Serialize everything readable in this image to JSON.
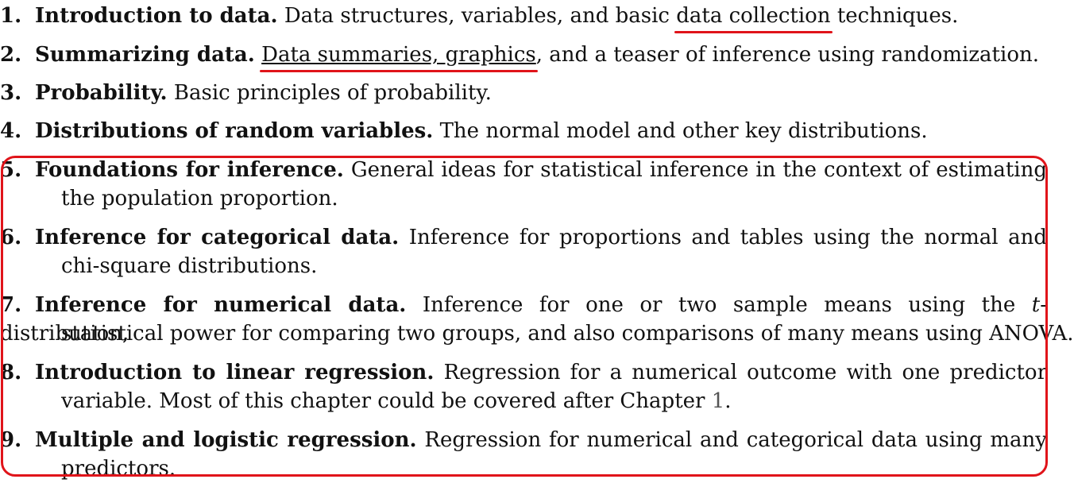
{
  "items": [
    {
      "num": "1.",
      "title": "Introduction to data.",
      "desc_before": "Data structures, variables, and basic ",
      "desc_link": "data collection",
      "desc_after": " techniques."
    },
    {
      "num": "2.",
      "title": "Summarizing data.",
      "desc_link": "Data summaries, graphics",
      "desc_after": ", and a teaser of inference using randomization."
    },
    {
      "num": "3.",
      "title": "Probability.",
      "desc": "Basic principles of probability."
    },
    {
      "num": "4.",
      "title": "Distributions of random variables.",
      "desc": "The normal model and other key distributions."
    },
    {
      "num": "5.",
      "title": "Foundations for inference.",
      "desc_line1": "General ideas for statistical inference in the context of estimating",
      "desc_line2": "the population proportion."
    },
    {
      "num": "6.",
      "title": "Inference for categorical data.",
      "desc_line1": "Inference for proportions and tables using the normal and",
      "desc_line2": "chi-square distributions."
    },
    {
      "num": "7.",
      "title": "Inference for numerical data.",
      "desc_line1_a": "Inference for one or two sample means using the ",
      "desc_line1_ital": "t",
      "desc_line1_b": "-distribution,",
      "desc_line2": "statistical power for comparing two groups, and also comparisons of many means using ANOVA."
    },
    {
      "num": "8.",
      "title": "Introduction to linear regression.",
      "desc_line1": "Regression for a numerical outcome with one predictor",
      "desc_line2_a": "variable. Most of this chapter could be covered after Chapter ",
      "desc_line2_ref": "1",
      "desc_line2_b": "."
    },
    {
      "num": "9.",
      "title": "Multiple and logistic regression.",
      "desc_line1": "Regression for numerical and categorical data using many",
      "desc_line2": "predictors."
    }
  ],
  "colors": {
    "highlight": "#e0141a",
    "text": "#111111",
    "reference": "#555555"
  }
}
